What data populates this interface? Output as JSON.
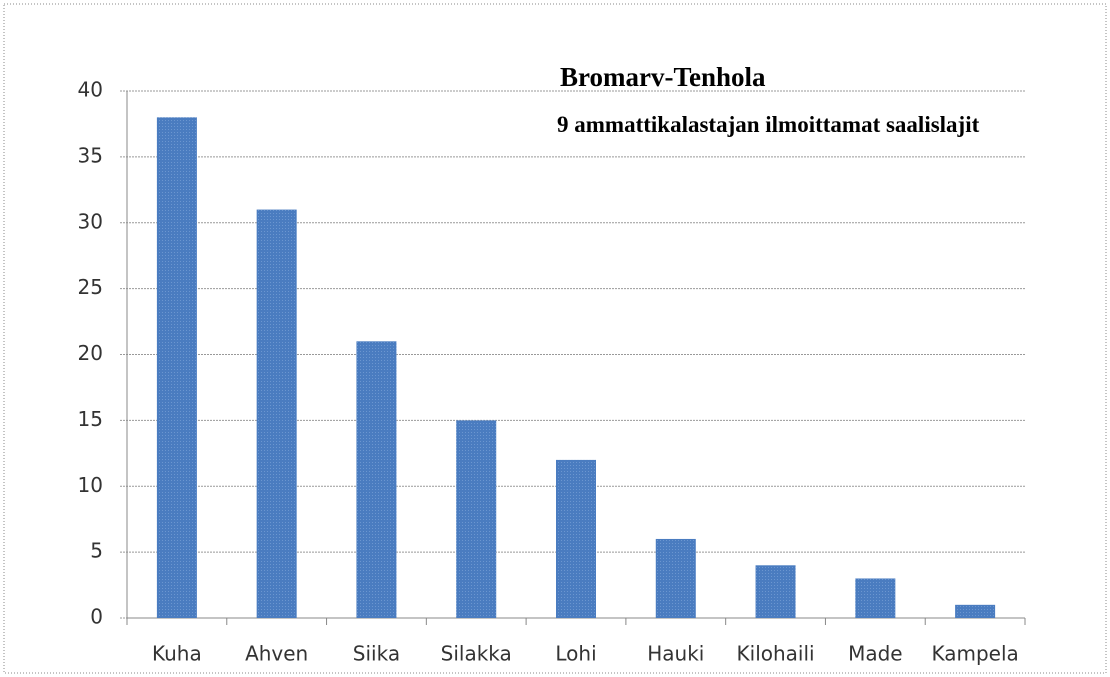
{
  "chart_data": {
    "type": "bar",
    "title": "Bromarv-Tenhola",
    "subtitle": "9 ammattikalastajan ilmoittamat saalislajit",
    "categories": [
      "Kuha",
      "Ahven",
      "Siika",
      "Silakka",
      "Lohi",
      "Hauki",
      "Kilohaili",
      "Made",
      "Kampela"
    ],
    "values": [
      38,
      31,
      21,
      15,
      12,
      6,
      4,
      3,
      1
    ],
    "color": "#4a7cc0",
    "ylim": [
      0,
      40
    ],
    "yticks": [
      0,
      5,
      10,
      15,
      20,
      25,
      30,
      35,
      40
    ],
    "grid": true
  }
}
